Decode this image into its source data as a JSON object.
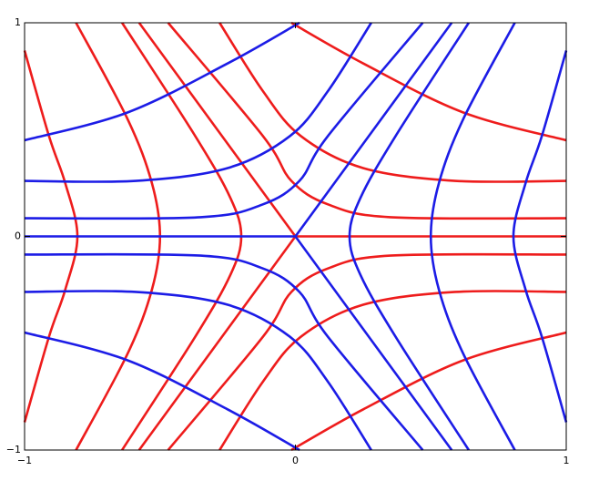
{
  "chart_data": {
    "type": "line",
    "xlim": [
      -1,
      1
    ],
    "ylim": [
      -1,
      1
    ],
    "xticks": [
      {
        "value": -1,
        "label": "−1"
      },
      0,
      1
    ],
    "yticks": [
      {
        "value": -1,
        "label": "−1"
      },
      0,
      1
    ],
    "series": [
      {
        "color": "#ee1c1c",
        "x": [
          -1,
          -0.91,
          -0.85,
          -0.805,
          -0.85,
          -0.91,
          -1
        ],
        "values": [
          0.87,
          0.47,
          0.25,
          0,
          -0.25,
          -0.47,
          -0.87
        ]
      },
      {
        "color": "#ee1c1c",
        "x": [
          -0.81,
          -0.62,
          -0.53,
          -0.5,
          -0.53,
          -0.62,
          -0.81
        ],
        "values": [
          1,
          0.55,
          0.25,
          0,
          -0.25,
          -0.55,
          -1
        ]
      },
      {
        "color": "#ee1c1c",
        "x": [
          -0.64,
          -0.37,
          -0.24,
          -0.2,
          -0.24,
          -0.37,
          -0.64
        ],
        "values": [
          1,
          0.47,
          0.18,
          0,
          -0.18,
          -0.47,
          -1
        ]
      },
      {
        "color": "#ee1c1c",
        "x": [
          -0.577,
          0
        ],
        "values": [
          1,
          0
        ]
      },
      {
        "color": "#ee1c1c",
        "x": [
          0,
          1
        ],
        "values": [
          0,
          0
        ]
      },
      {
        "color": "#ee1c1c",
        "x": [
          -0.577,
          0
        ],
        "values": [
          -1,
          0
        ]
      },
      {
        "color": "#ee1c1c",
        "x": [
          -0.47,
          -0.12,
          -0.015,
          0.12,
          0.35,
          1
        ],
        "values": [
          1,
          0.47,
          0.26,
          0.15,
          0.09,
          0.085
        ]
      },
      {
        "color": "#ee1c1c",
        "x": [
          -0.47,
          -0.12,
          -0.015,
          0.12,
          0.35,
          1
        ],
        "values": [
          -1,
          -0.47,
          -0.26,
          -0.15,
          -0.09,
          -0.085
        ]
      },
      {
        "color": "#ee1c1c",
        "x": [
          -0.28,
          -0.12,
          0.02,
          0.25,
          0.59,
          1
        ],
        "values": [
          1,
          0.68,
          0.47,
          0.32,
          0.26,
          0.26
        ]
      },
      {
        "color": "#ee1c1c",
        "x": [
          -0.28,
          -0.12,
          0.02,
          0.25,
          0.59,
          1
        ],
        "values": [
          -1,
          -0.68,
          -0.47,
          -0.32,
          -0.26,
          -0.26
        ]
      },
      {
        "color": "#ee1c1c",
        "x": [
          -0.015,
          0.25,
          0.62,
          1
        ],
        "values": [
          1,
          0.81,
          0.58,
          0.45
        ]
      },
      {
        "color": "#ee1c1c",
        "x": [
          -0.015,
          0.25,
          0.62,
          1
        ],
        "values": [
          -1,
          -0.81,
          -0.58,
          -0.45
        ]
      },
      {
        "color": "#1c1ce6",
        "x": [
          1,
          0.91,
          0.85,
          0.805,
          0.85,
          0.91,
          1
        ],
        "values": [
          0.87,
          0.47,
          0.25,
          0,
          -0.25,
          -0.47,
          -0.87
        ]
      },
      {
        "color": "#1c1ce6",
        "x": [
          0.81,
          0.62,
          0.53,
          0.5,
          0.53,
          0.62,
          0.81
        ],
        "values": [
          1,
          0.55,
          0.25,
          0,
          -0.25,
          -0.55,
          -1
        ]
      },
      {
        "color": "#1c1ce6",
        "x": [
          0.64,
          0.37,
          0.24,
          0.2,
          0.24,
          0.37,
          0.64
        ],
        "values": [
          1,
          0.47,
          0.18,
          0,
          -0.18,
          -0.47,
          -1
        ]
      },
      {
        "color": "#1c1ce6",
        "x": [
          0.577,
          0
        ],
        "values": [
          1,
          0
        ]
      },
      {
        "color": "#1c1ce6",
        "x": [
          0,
          -1
        ],
        "values": [
          0,
          0
        ]
      },
      {
        "color": "#1c1ce6",
        "x": [
          0.577,
          0
        ],
        "values": [
          -1,
          0
        ]
      },
      {
        "color": "#1c1ce6",
        "x": [
          0.47,
          0.12,
          0.015,
          -0.12,
          -0.35,
          -1
        ],
        "values": [
          1,
          0.47,
          0.26,
          0.15,
          0.09,
          0.085
        ]
      },
      {
        "color": "#1c1ce6",
        "x": [
          0.47,
          0.12,
          0.015,
          -0.12,
          -0.35,
          -1
        ],
        "values": [
          -1,
          -0.47,
          -0.26,
          -0.15,
          -0.09,
          -0.085
        ]
      },
      {
        "color": "#1c1ce6",
        "x": [
          0.28,
          0.12,
          -0.02,
          -0.25,
          -0.59,
          -1
        ],
        "values": [
          1,
          0.68,
          0.47,
          0.32,
          0.26,
          0.26
        ]
      },
      {
        "color": "#1c1ce6",
        "x": [
          0.28,
          0.12,
          -0.02,
          -0.25,
          -0.59,
          -1
        ],
        "values": [
          -1,
          -0.68,
          -0.47,
          -0.32,
          -0.26,
          -0.26
        ]
      },
      {
        "color": "#1c1ce6",
        "x": [
          0.015,
          -0.25,
          -0.62,
          -1
        ],
        "values": [
          1,
          0.81,
          0.58,
          0.45
        ]
      },
      {
        "color": "#1c1ce6",
        "x": [
          0.015,
          -0.25,
          -0.62,
          -1
        ],
        "values": [
          -1,
          -0.81,
          -0.58,
          -0.45
        ]
      }
    ]
  }
}
